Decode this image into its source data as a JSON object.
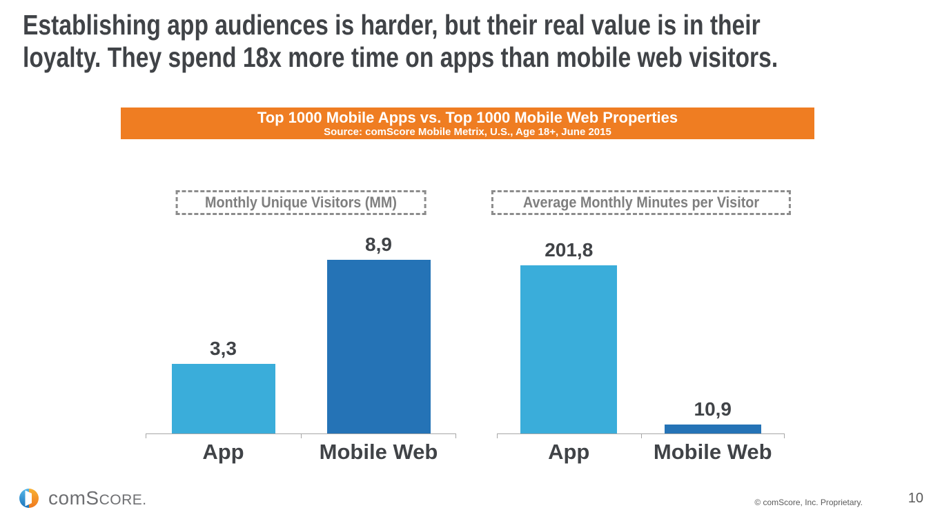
{
  "slide": {
    "title_line1": "Establishing app audiences is harder, but their real value is in their",
    "title_line2": "loyalty. They spend 18x more time on apps than mobile web visitors."
  },
  "banner": {
    "title": "Top 1000 Mobile Apps vs. Top 1000 Mobile Web Properties",
    "subtitle": "Source: comScore Mobile Metrix, U.S., Age 18+, June 2015",
    "bg_color": "#EF7D22",
    "text_color": "#FFFFFF"
  },
  "chart_data": [
    {
      "type": "bar",
      "title": "Monthly Unique Visitors (MM)",
      "categories": [
        "App",
        "Mobile Web"
      ],
      "values": [
        3.3,
        8.9
      ],
      "value_labels": [
        "3,3",
        "8,9"
      ],
      "ylim": [
        0,
        9.5
      ],
      "bar_colors": [
        "#3AADDA",
        "#2573B6"
      ],
      "xlabel": "",
      "ylabel": "",
      "grid": false,
      "legend": false
    },
    {
      "type": "bar",
      "title": "Average Monthly Minutes per Visitor",
      "categories": [
        "App",
        "Mobile Web"
      ],
      "values": [
        201.8,
        10.9
      ],
      "value_labels": [
        "201,8",
        "10,9"
      ],
      "ylim": [
        0,
        240
      ],
      "bar_colors": [
        "#3AADDA",
        "#2573B6"
      ],
      "xlabel": "",
      "ylabel": "",
      "grid": false,
      "legend": false
    }
  ],
  "footer": {
    "logo": {
      "part_com": "com",
      "part_s": "S",
      "part_core": "CORE",
      "part_period": "."
    },
    "copyright": "© comScore, Inc. Proprietary.",
    "page_number": "10"
  },
  "colors": {
    "app_bar": "#3AADDA",
    "mobile_web_bar": "#2573B6",
    "accent_orange": "#EF7D22",
    "title_text": "#404347",
    "box_label_gray": "#7F7F7F",
    "axis_gray": "#A6A6A6",
    "logo_blue": "#2E9FD8",
    "logo_orange": "#F5A11D"
  }
}
